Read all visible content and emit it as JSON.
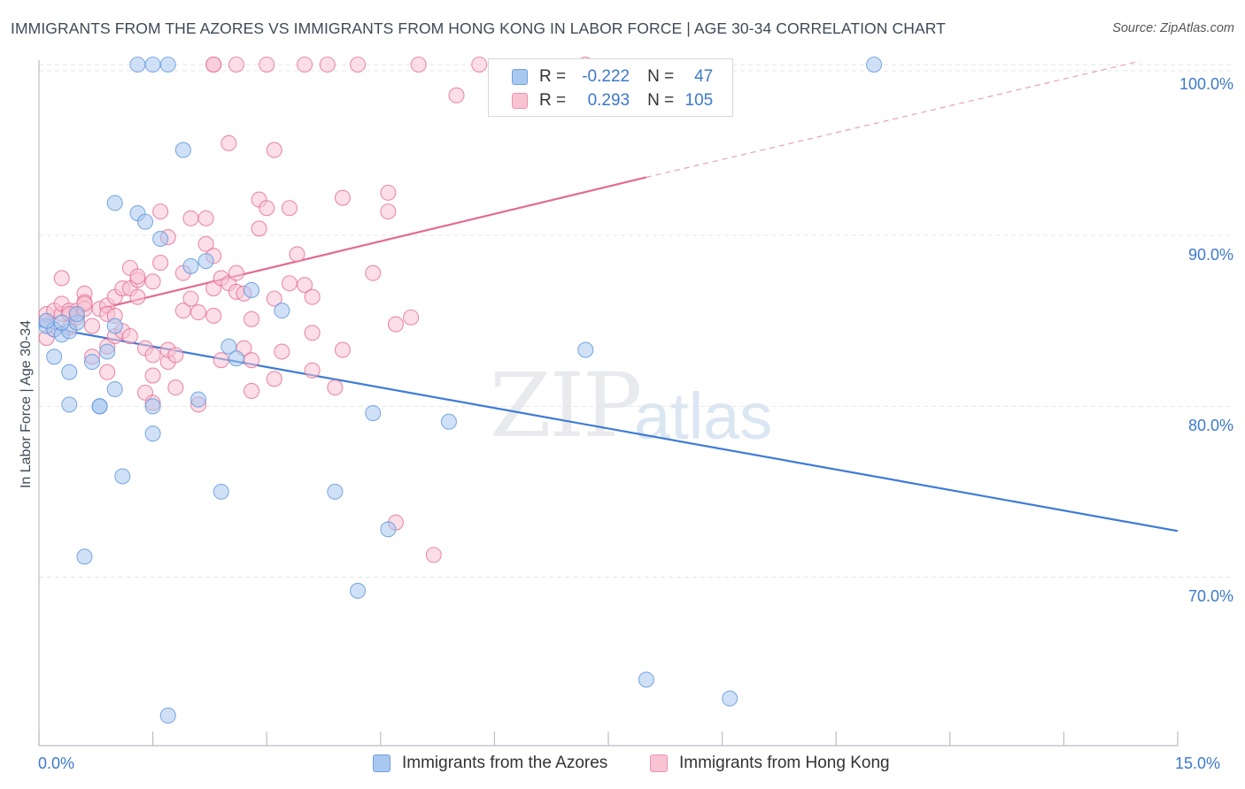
{
  "title": "IMMIGRANTS FROM THE AZORES VS IMMIGRANTS FROM HONG KONG IN LABOR FORCE | AGE 30-34 CORRELATION CHART",
  "source": "Source: ZipAtlas.com",
  "watermark": {
    "zip": "ZIP",
    "atlas": "atlas"
  },
  "legend": {
    "r_label": "R =",
    "n_label": "N =",
    "rows": [
      {
        "r": "-0.222",
        "n": "47",
        "color": "#a9c8f0",
        "border": "#6f9fe0"
      },
      {
        "r": "0.293",
        "n": "105",
        "color": "#f8c3d3",
        "border": "#ec93b0"
      }
    ]
  },
  "bottom_legend": [
    {
      "label": "Immigrants from the Azores",
      "color": "#a9c8f0",
      "border": "#6f9fe0"
    },
    {
      "label": "Immigrants from Hong Kong",
      "color": "#f8c3d3",
      "border": "#ec93b0"
    }
  ],
  "chart_data": {
    "type": "scatter",
    "title": "IMMIGRANTS FROM THE AZORES VS IMMIGRANTS FROM HONG KONG IN LABOR FORCE | AGE 30-34 CORRELATION CHART",
    "xlabel": "",
    "ylabel": "In Labor Force | Age 30-34",
    "xlim": [
      0,
      15
    ],
    "ylim": [
      60.5,
      100
    ],
    "x_tick_labels": [
      "0.0%",
      "15.0%"
    ],
    "y_ticks": [
      70,
      80,
      90,
      100
    ],
    "y_tick_labels": [
      "70.0%",
      "80.0%",
      "90.0%",
      "100.0%"
    ],
    "grid": true,
    "series": [
      {
        "name": "Immigrants from the Azores",
        "color": "#5b93db",
        "fill": "#a9c8f0",
        "r": -0.222,
        "n": 47,
        "trend": {
          "x0": 0.0,
          "y0": 84.7,
          "x1": 15.0,
          "y1": 72.7
        },
        "points": [
          [
            0.1,
            84.7
          ],
          [
            0.2,
            84.5
          ],
          [
            0.3,
            84.2
          ],
          [
            0.2,
            82.9
          ],
          [
            0.4,
            84.4
          ],
          [
            0.5,
            84.9
          ],
          [
            0.5,
            85.4
          ],
          [
            0.4,
            82.0
          ],
          [
            0.7,
            82.6
          ],
          [
            0.9,
            83.2
          ],
          [
            1.0,
            84.7
          ],
          [
            0.4,
            80.1
          ],
          [
            0.8,
            80.0
          ],
          [
            0.8,
            80.0
          ],
          [
            1.0,
            81.0
          ],
          [
            0.6,
            71.2
          ],
          [
            1.1,
            75.9
          ],
          [
            1.0,
            91.9
          ],
          [
            1.3,
            91.3
          ],
          [
            1.4,
            90.8
          ],
          [
            1.6,
            89.8
          ],
          [
            1.5,
            80.0
          ],
          [
            1.5,
            78.4
          ],
          [
            1.3,
            100.0
          ],
          [
            1.5,
            100.0
          ],
          [
            1.7,
            100.0
          ],
          [
            1.9,
            95.0
          ],
          [
            2.0,
            88.2
          ],
          [
            2.2,
            88.5
          ],
          [
            2.1,
            80.4
          ],
          [
            2.4,
            75.0
          ],
          [
            2.5,
            83.5
          ],
          [
            2.6,
            82.8
          ],
          [
            2.8,
            86.8
          ],
          [
            3.2,
            85.6
          ],
          [
            3.9,
            75.0
          ],
          [
            4.2,
            69.2
          ],
          [
            4.4,
            79.6
          ],
          [
            4.6,
            72.8
          ],
          [
            5.4,
            79.1
          ],
          [
            7.2,
            83.3
          ],
          [
            8.0,
            64.0
          ],
          [
            9.1,
            62.9
          ],
          [
            11.0,
            100.0
          ],
          [
            1.7,
            61.9
          ],
          [
            0.1,
            85.0
          ],
          [
            0.3,
            84.9
          ]
        ]
      },
      {
        "name": "Immigrants from Hong Kong",
        "color": "#e26b92",
        "fill": "#f8c3d3",
        "r": 0.293,
        "n": 105,
        "trend": {
          "x0": 0.8,
          "y0": 85.7,
          "x1": 8.0,
          "y1": 93.4
        },
        "trend_dashed": {
          "x0": 8.0,
          "y0": 93.4,
          "x1": 14.5,
          "y1": 100.2
        },
        "points": [
          [
            0.1,
            85.0
          ],
          [
            0.1,
            84.0
          ],
          [
            0.1,
            85.4
          ],
          [
            0.2,
            85.6
          ],
          [
            0.2,
            84.5
          ],
          [
            0.3,
            85.4
          ],
          [
            0.3,
            86.0
          ],
          [
            0.3,
            87.5
          ],
          [
            0.4,
            85.6
          ],
          [
            0.4,
            84.6
          ],
          [
            0.5,
            85.2
          ],
          [
            0.5,
            85.6
          ],
          [
            0.6,
            86.6
          ],
          [
            0.6,
            86.1
          ],
          [
            0.6,
            85.7
          ],
          [
            0.7,
            84.7
          ],
          [
            0.7,
            82.9
          ],
          [
            0.8,
            85.7
          ],
          [
            0.9,
            85.9
          ],
          [
            0.9,
            85.4
          ],
          [
            1.0,
            86.4
          ],
          [
            0.9,
            83.5
          ],
          [
            1.0,
            84.1
          ],
          [
            0.9,
            82.0
          ],
          [
            1.0,
            85.3
          ],
          [
            1.1,
            86.9
          ],
          [
            1.1,
            84.4
          ],
          [
            1.2,
            86.9
          ],
          [
            1.2,
            88.1
          ],
          [
            1.2,
            84.1
          ],
          [
            1.3,
            87.4
          ],
          [
            1.3,
            87.6
          ],
          [
            1.3,
            86.4
          ],
          [
            1.4,
            80.8
          ],
          [
            1.4,
            83.4
          ],
          [
            1.5,
            83.0
          ],
          [
            1.5,
            87.3
          ],
          [
            1.5,
            80.2
          ],
          [
            1.5,
            81.8
          ],
          [
            1.6,
            88.4
          ],
          [
            1.6,
            91.4
          ],
          [
            1.7,
            89.9
          ],
          [
            1.7,
            82.6
          ],
          [
            1.7,
            83.3
          ],
          [
            1.8,
            81.1
          ],
          [
            1.8,
            83.0
          ],
          [
            1.9,
            87.8
          ],
          [
            1.9,
            85.6
          ],
          [
            2.0,
            86.3
          ],
          [
            2.0,
            91.0
          ],
          [
            2.1,
            80.1
          ],
          [
            2.1,
            85.5
          ],
          [
            2.2,
            89.5
          ],
          [
            2.2,
            91.0
          ],
          [
            2.3,
            88.8
          ],
          [
            2.3,
            86.9
          ],
          [
            2.3,
            85.3
          ],
          [
            2.4,
            82.7
          ],
          [
            2.4,
            87.5
          ],
          [
            2.5,
            95.4
          ],
          [
            2.5,
            87.2
          ],
          [
            2.6,
            87.8
          ],
          [
            2.6,
            86.7
          ],
          [
            2.7,
            83.4
          ],
          [
            2.7,
            86.6
          ],
          [
            2.8,
            85.1
          ],
          [
            2.8,
            82.7
          ],
          [
            2.8,
            80.9
          ],
          [
            2.9,
            92.1
          ],
          [
            2.9,
            90.4
          ],
          [
            3.0,
            91.6
          ],
          [
            3.1,
            95.0
          ],
          [
            3.1,
            86.3
          ],
          [
            3.1,
            81.6
          ],
          [
            3.2,
            83.2
          ],
          [
            3.3,
            87.2
          ],
          [
            3.3,
            91.6
          ],
          [
            3.4,
            88.9
          ],
          [
            3.5,
            87.1
          ],
          [
            3.6,
            86.4
          ],
          [
            3.6,
            82.1
          ],
          [
            3.6,
            84.3
          ],
          [
            4.0,
            92.2
          ],
          [
            4.0,
            83.3
          ],
          [
            3.9,
            81.1
          ],
          [
            4.4,
            87.8
          ],
          [
            4.6,
            92.5
          ],
          [
            4.6,
            91.4
          ],
          [
            4.7,
            84.8
          ],
          [
            4.9,
            85.2
          ],
          [
            4.7,
            73.2
          ],
          [
            5.2,
            71.3
          ],
          [
            5.5,
            98.2
          ],
          [
            2.3,
            100.0
          ],
          [
            2.3,
            100.0
          ],
          [
            2.6,
            100.0
          ],
          [
            3.0,
            100.0
          ],
          [
            3.5,
            100.0
          ],
          [
            3.8,
            100.0
          ],
          [
            4.2,
            100.0
          ],
          [
            5.0,
            100.0
          ],
          [
            5.8,
            100.0
          ],
          [
            7.2,
            100.0
          ],
          [
            0.4,
            85.4
          ],
          [
            0.6,
            86.0
          ]
        ]
      }
    ]
  }
}
